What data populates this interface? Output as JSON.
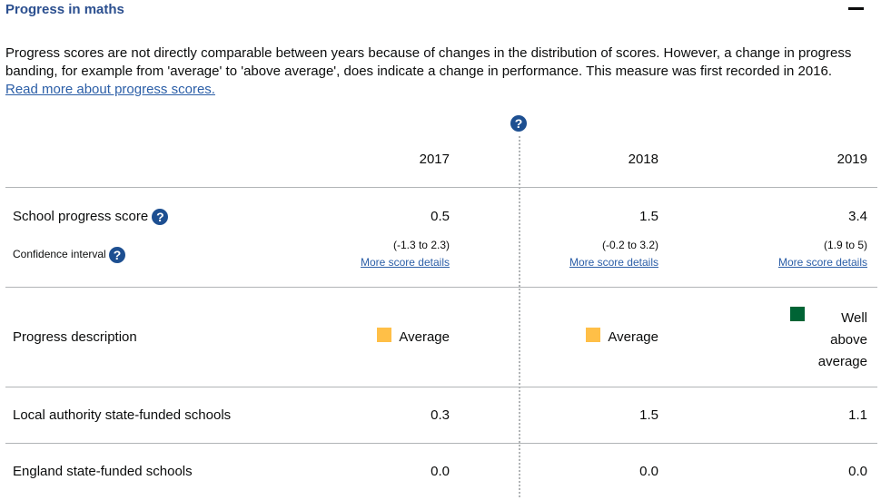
{
  "section": {
    "title": "Progress in maths",
    "intro": "Progress scores are not directly comparable between years because of changes in the distribution of scores. However, a change in progress banding, for example from 'average' to 'above average', does indicate a change in performance. This measure was first recorded in 2016.",
    "read_more": "Read more about progress scores."
  },
  "icons": {
    "help": "?",
    "collapse": "minus-icon"
  },
  "years": [
    "2017",
    "2018",
    "2019"
  ],
  "rows": {
    "school_progress_label": "School progress score",
    "confidence_label": "Confidence interval",
    "progress_description_label": "Progress description",
    "local_authority_label": "Local authority state-funded schools",
    "england_label": "England state-funded schools"
  },
  "values": {
    "score": [
      "0.5",
      "1.5",
      "3.4"
    ],
    "confidence": [
      "(-1.3 to 2.3)",
      "(-0.2 to 3.2)",
      "(1.9 to 5)"
    ],
    "more_details": "More score details",
    "description": [
      {
        "text": "Average",
        "color": "#ffbf47"
      },
      {
        "text": "Average",
        "color": "#ffbf47"
      },
      {
        "text": "Well above average",
        "color": "#006435"
      }
    ],
    "local_authority": [
      "0.3",
      "1.5",
      "1.1"
    ],
    "england": [
      "0.0",
      "0.0",
      "0.0"
    ]
  }
}
